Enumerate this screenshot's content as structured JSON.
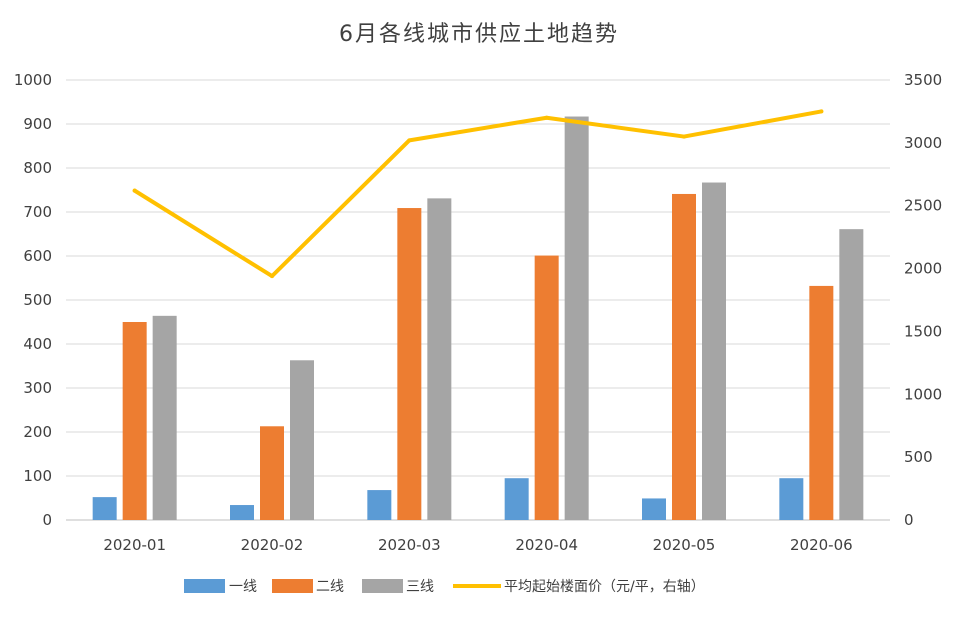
{
  "chart_data": {
    "type": "bar",
    "title": "6月各线城市供应土地趋势",
    "categories": [
      "2020-01",
      "2020-02",
      "2020-03",
      "2020-04",
      "2020-05",
      "2020-06"
    ],
    "series": [
      {
        "name": "一线",
        "type": "bar",
        "axis": "left",
        "color": "#5B9BD5",
        "values": [
          52,
          34,
          68,
          95,
          49,
          95
        ]
      },
      {
        "name": "二线",
        "type": "bar",
        "axis": "left",
        "color": "#ED7D31",
        "values": [
          450,
          213,
          709,
          601,
          741,
          532
        ]
      },
      {
        "name": "三线",
        "type": "bar",
        "axis": "left",
        "color": "#A5A5A5",
        "values": [
          464,
          363,
          731,
          917,
          767,
          661
        ]
      },
      {
        "name": "平均起始楼面价（元/平，右轴）",
        "type": "line",
        "axis": "right",
        "color": "#FFC000",
        "values": [
          2620,
          1940,
          3020,
          3200,
          3050,
          3250
        ]
      }
    ],
    "ylim": [
      0,
      1000
    ],
    "y_ticks": [
      "0",
      "100",
      "200",
      "300",
      "400",
      "500",
      "600",
      "700",
      "800",
      "900",
      "1000"
    ],
    "y2lim": [
      0,
      3500
    ],
    "y2_ticks": [
      "0",
      "500",
      "1000",
      "1500",
      "2000",
      "2500",
      "3000",
      "3500"
    ],
    "grid": true,
    "legend_position": "bottom"
  }
}
